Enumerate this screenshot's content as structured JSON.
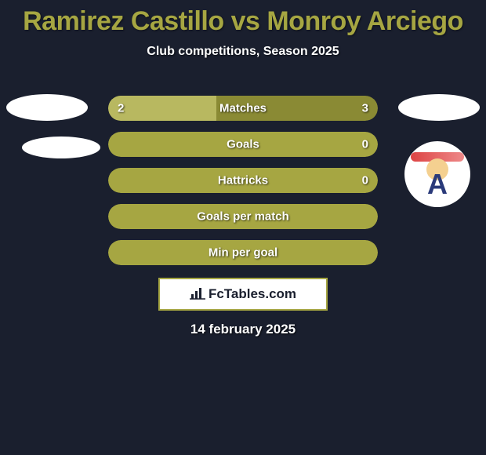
{
  "title": "Ramirez Castillo vs Monroy Arciego",
  "subtitle": "Club competitions, Season 2025",
  "date": "14 february 2025",
  "logo_text": "FcTables.com",
  "colors": {
    "accent": "#a6a642",
    "bar_olive_light": "#b8b860",
    "bar_olive_dark": "#8a8a34",
    "background": "#1a1f2e",
    "white": "#ffffff"
  },
  "bars": [
    {
      "label": "Matches",
      "left_val": "2",
      "right_val": "3",
      "left_pct": 40,
      "right_pct": 60,
      "left_color": "#b8b860",
      "right_color": "#8a8a34"
    },
    {
      "label": "Goals",
      "left_val": "",
      "right_val": "0",
      "left_pct": 0,
      "right_pct": 100,
      "left_color": "#b8b860",
      "right_color": "#a6a642"
    },
    {
      "label": "Hattricks",
      "left_val": "",
      "right_val": "0",
      "left_pct": 0,
      "right_pct": 100,
      "left_color": "#b8b860",
      "right_color": "#a6a642"
    },
    {
      "label": "Goals per match",
      "left_val": "",
      "right_val": "",
      "left_pct": 0,
      "right_pct": 100,
      "left_color": "#b8b860",
      "right_color": "#a6a642"
    },
    {
      "label": "Min per goal",
      "left_val": "",
      "right_val": "",
      "left_pct": 0,
      "right_pct": 100,
      "left_color": "#b8b860",
      "right_color": "#a6a642"
    }
  ]
}
